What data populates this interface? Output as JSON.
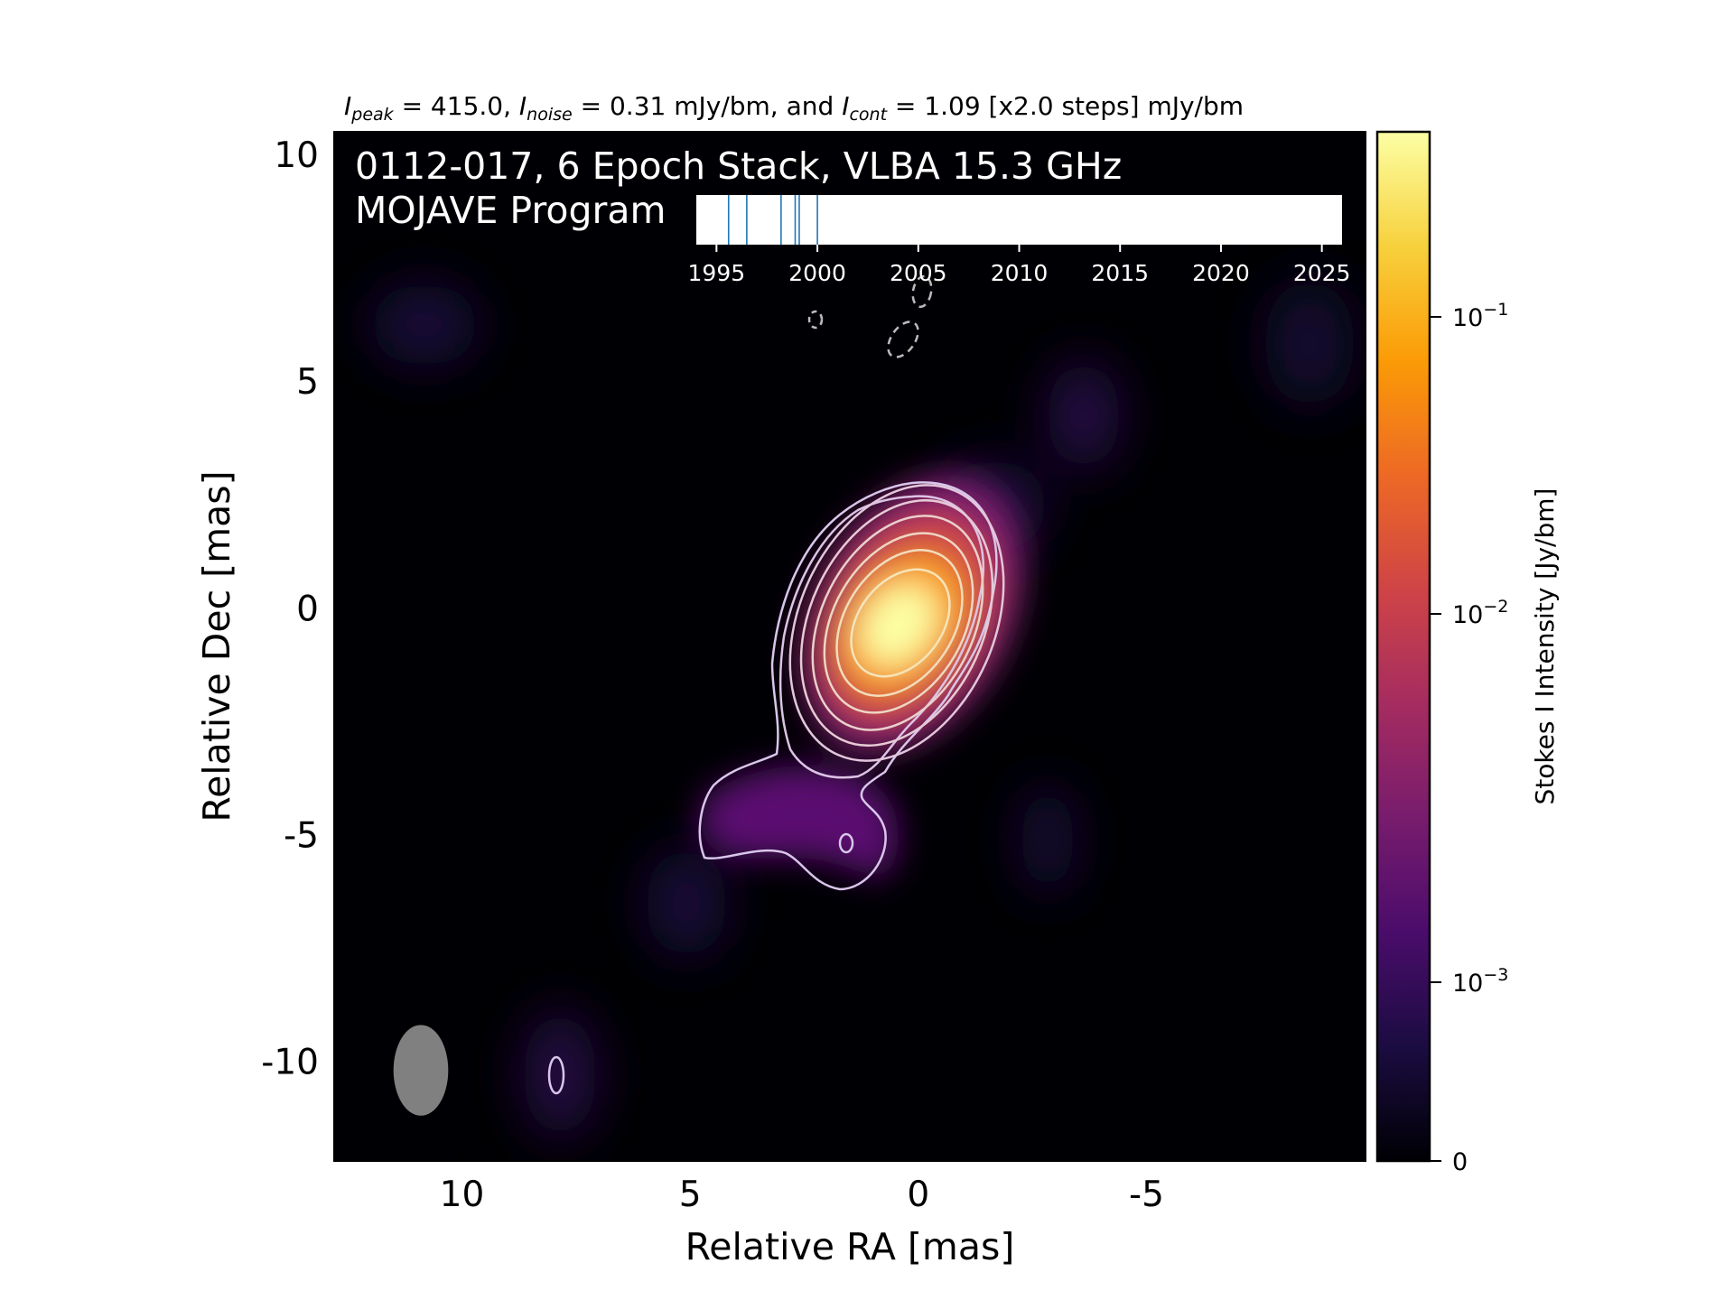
{
  "header": {
    "i_peak_label": "I",
    "i_peak_sub": "peak",
    "i_peak_value": " = 415.0, ",
    "i_noise_label": "I",
    "i_noise_sub": "noise",
    "i_noise_value": " = 0.31 mJy/bm, and ",
    "i_cont_label": "I",
    "i_cont_sub": "cont",
    "i_cont_value": " = 1.09 [x2.0 steps] mJy/bm"
  },
  "map": {
    "title_line1": "0112-017, 6 Epoch Stack, VLBA 15.3 GHz",
    "title_line2": "MOJAVE Program"
  },
  "colorbar": {
    "label": "Stokes I Intensity [Jy/bm]",
    "ticks": [
      {
        "base": "10",
        "exp": "−1",
        "value": 0.1
      },
      {
        "base": "10",
        "exp": "−2",
        "value": 0.01
      },
      {
        "base": "10",
        "exp": "−3",
        "value": 0.001
      },
      {
        "base": "0",
        "exp": "",
        "value": 0
      }
    ],
    "colormap": "inferno",
    "colors": [
      "#000004",
      "#1b0c41",
      "#4a0c6b",
      "#781c6d",
      "#a52c60",
      "#cf4446",
      "#ed6925",
      "#fb9b06",
      "#f7d13d",
      "#fcffa4"
    ]
  },
  "epoch_timeline": {
    "ticks": [
      "1995",
      "2000",
      "2005",
      "2010",
      "2015",
      "2020",
      "2025"
    ],
    "tick_values": [
      1995,
      2000,
      2005,
      2010,
      2015,
      2020,
      2025
    ],
    "range": [
      1994.0,
      2026.0
    ],
    "epochs": [
      1995.6,
      1996.5,
      1998.2,
      1998.9,
      1999.1,
      2000.0
    ],
    "epoch_color": "#1f77b4"
  },
  "chart_data": {
    "type": "heatmap",
    "title": "",
    "xlabel": "Relative RA [mas]",
    "ylabel": "Relative Dec [mas]",
    "xlim": [
      12.8,
      -9.8
    ],
    "ylim": [
      -12.2,
      10.5
    ],
    "x_ticks": [
      {
        "value": 10,
        "label": "10"
      },
      {
        "value": 5,
        "label": "5"
      },
      {
        "value": 0,
        "label": "0"
      },
      {
        "value": -5,
        "label": "-5"
      }
    ],
    "y_ticks": [
      {
        "value": 10,
        "label": "10"
      },
      {
        "value": 5,
        "label": "5"
      },
      {
        "value": 0,
        "label": "0"
      },
      {
        "value": -5,
        "label": "-5"
      },
      {
        "value": -10,
        "label": "-10"
      }
    ],
    "peak_position": [
      0.5,
      -0.3
    ],
    "peak_intensity_mJy_per_beam": 415.0,
    "noise_mJy_per_beam": 0.31,
    "lowest_contour_mJy_per_beam": 1.09,
    "contour_step_factor": 2.0,
    "beam": {
      "ra": 10.9,
      "dec": -10.2,
      "major_mas": 2.0,
      "minor_mas": 1.2,
      "pa_deg": 0
    },
    "grid": false
  }
}
